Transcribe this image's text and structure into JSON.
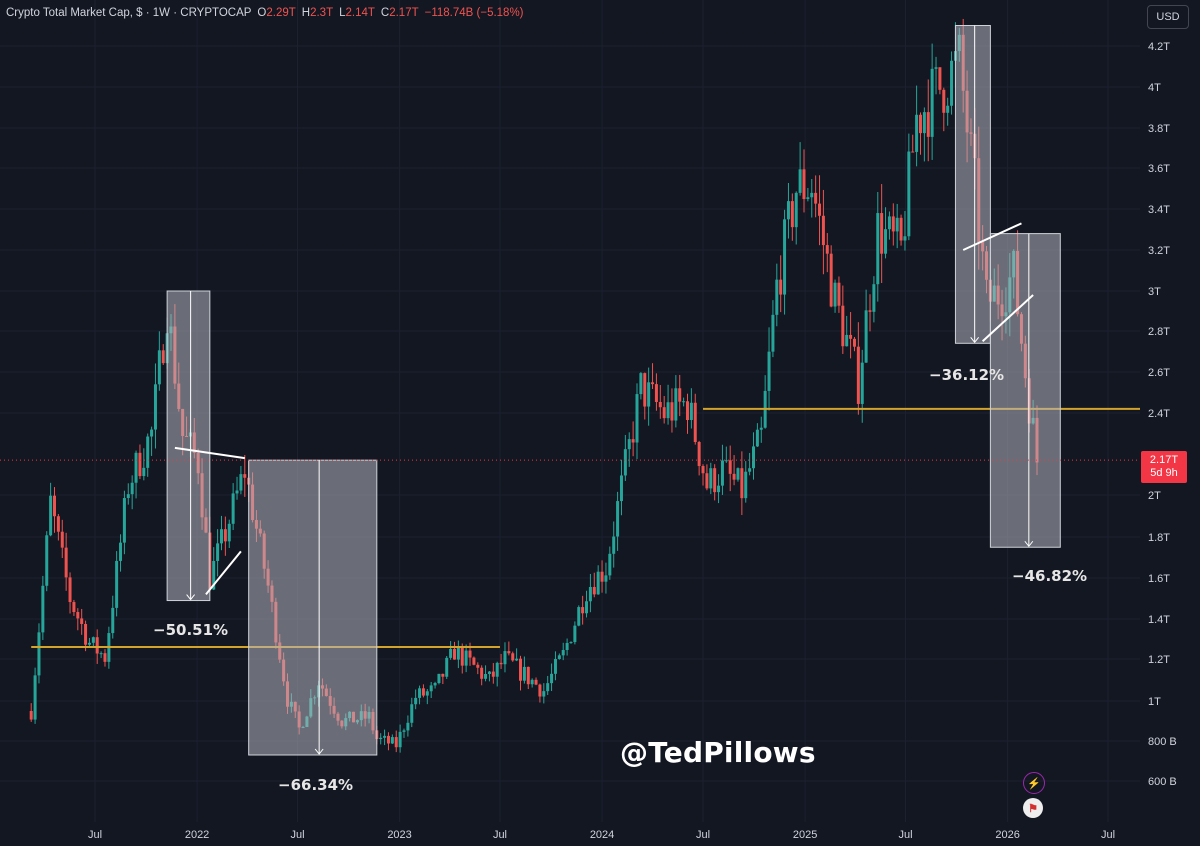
{
  "header": {
    "symbol": "Crypto Total Market Cap, $ · 1W · CRYPTOCAP",
    "open_label": "O",
    "open": "2.29T",
    "high_label": "H",
    "high": "2.3T",
    "low_label": "L",
    "low": "2.14T",
    "close_label": "C",
    "close": "2.17T",
    "change": "−118.74B (−5.18%)"
  },
  "currency_button": "USD",
  "price_tag": {
    "price": "2.17T",
    "countdown": "5d 9h"
  },
  "watermark": "@TedPillows",
  "annotations": {
    "drop1": "−50.51%",
    "drop2": "−66.34%",
    "drop3": "−36.12%",
    "drop4": "−46.82%"
  },
  "icons": {
    "alert": "lightning-icon",
    "flag": "us-flag-icon"
  },
  "colors": {
    "background": "#131722",
    "up": "#26a69a",
    "down": "#ef5350",
    "support_line": "#d4a32b",
    "box_fill": "#b2b5be",
    "price_tag": "#f23645"
  },
  "chart_data": {
    "type": "candlestick",
    "title": "Crypto Total Market Cap, $ · 1W · CRYPTOCAP",
    "y_axis": {
      "labels": [
        "4.2T",
        "4T",
        "3.8T",
        "3.6T",
        "3.4T",
        "3.2T",
        "3T",
        "2.8T",
        "2.6T",
        "2.4T",
        "2T",
        "1.8T",
        "1.6T",
        "1.4T",
        "1.2T",
        "1T",
        "800 B",
        "600 B"
      ],
      "values": [
        4.2,
        4.0,
        3.8,
        3.6,
        3.4,
        3.2,
        3.0,
        2.8,
        2.6,
        2.4,
        2.0,
        1.8,
        1.6,
        1.4,
        1.2,
        1.0,
        0.8,
        0.6
      ],
      "unit": "T",
      "range": [
        0.55,
        4.28
      ]
    },
    "x_axis": {
      "labels": [
        "Jul",
        "2022",
        "Jul",
        "2023",
        "Jul",
        "2024",
        "Jul",
        "2025",
        "Jul",
        "2026",
        "Jul"
      ],
      "dates": [
        "2021-07-01",
        "2022-01-01",
        "2022-07-01",
        "2023-01-01",
        "2023-07-01",
        "2024-01-01",
        "2024-07-01",
        "2025-01-01",
        "2025-07-01",
        "2026-01-01",
        "2026-07-01"
      ],
      "range": [
        "2021-03-08",
        "2026-09-01"
      ]
    },
    "support_levels": [
      {
        "value": 1.26,
        "from": "2021-03-08",
        "to": "2023-07-01"
      },
      {
        "value": 2.42,
        "from": "2024-07-01",
        "to": "2026-09-01"
      }
    ],
    "last_price": 2.17,
    "drawdowns": [
      {
        "label": "−50.51%",
        "from_date": "2021-11-08",
        "to_date": "2022-01-24",
        "top": 3.0,
        "bottom": 1.49
      },
      {
        "label": "−66.34%",
        "from_date": "2022-04-04",
        "to_date": "2022-11-21",
        "top": 2.17,
        "bottom": 0.73
      },
      {
        "label": "−36.12%",
        "from_date": "2025-09-29",
        "to_date": "2025-12-01",
        "top": 4.3,
        "bottom": 2.74
      },
      {
        "label": "−46.82%",
        "from_date": "2025-12-01",
        "to_date": "2026-04-06",
        "top": 3.28,
        "bottom": 1.75
      }
    ],
    "keyframes": [
      [
        "2021-03-08",
        0.95
      ],
      [
        "2021-04-12",
        1.96
      ],
      [
        "2021-05-17",
        1.5
      ],
      [
        "2021-06-21",
        1.28
      ],
      [
        "2021-07-19",
        1.21
      ],
      [
        "2021-08-30",
        2.05
      ],
      [
        "2021-10-11",
        2.3
      ],
      [
        "2021-11-08",
        2.92
      ],
      [
        "2021-12-06",
        2.29
      ],
      [
        "2022-01-03",
        2.16
      ],
      [
        "2022-01-24",
        1.6
      ],
      [
        "2022-02-21",
        1.82
      ],
      [
        "2022-03-28",
        2.12
      ],
      [
        "2022-05-09",
        1.56
      ],
      [
        "2022-06-13",
        1.01
      ],
      [
        "2022-07-04",
        0.86
      ],
      [
        "2022-08-08",
        1.1
      ],
      [
        "2022-09-19",
        0.9
      ],
      [
        "2022-11-07",
        0.92
      ],
      [
        "2022-11-21",
        0.81
      ],
      [
        "2022-12-26",
        0.78
      ],
      [
        "2023-01-30",
        1.02
      ],
      [
        "2023-03-06",
        1.05
      ],
      [
        "2023-04-10",
        1.24
      ],
      [
        "2023-06-12",
        1.1
      ],
      [
        "2023-07-10",
        1.2
      ],
      [
        "2023-09-18",
        1.05
      ],
      [
        "2023-10-23",
        1.22
      ],
      [
        "2023-12-04",
        1.55
      ],
      [
        "2024-01-08",
        1.65
      ],
      [
        "2024-03-11",
        2.52
      ],
      [
        "2024-04-22",
        2.4
      ],
      [
        "2024-06-03",
        2.45
      ],
      [
        "2024-07-08",
        2.05
      ],
      [
        "2024-08-05",
        2.12
      ],
      [
        "2024-09-09",
        2.02
      ],
      [
        "2024-10-14",
        2.28
      ],
      [
        "2024-11-11",
        3.02
      ],
      [
        "2024-12-16",
        3.5
      ],
      [
        "2025-01-13",
        3.52
      ],
      [
        "2025-02-24",
        2.95
      ],
      [
        "2025-04-07",
        2.55
      ],
      [
        "2025-05-12",
        3.3
      ],
      [
        "2025-06-23",
        3.2
      ],
      [
        "2025-07-21",
        3.85
      ],
      [
        "2025-08-18",
        3.95
      ],
      [
        "2025-10-06",
        4.12
      ],
      [
        "2025-11-03",
        3.5
      ],
      [
        "2025-11-24",
        2.95
      ],
      [
        "2025-12-22",
        3.0
      ],
      [
        "2026-01-12",
        3.08
      ],
      [
        "2026-02-02",
        2.6
      ],
      [
        "2026-02-23",
        2.17
      ]
    ]
  }
}
